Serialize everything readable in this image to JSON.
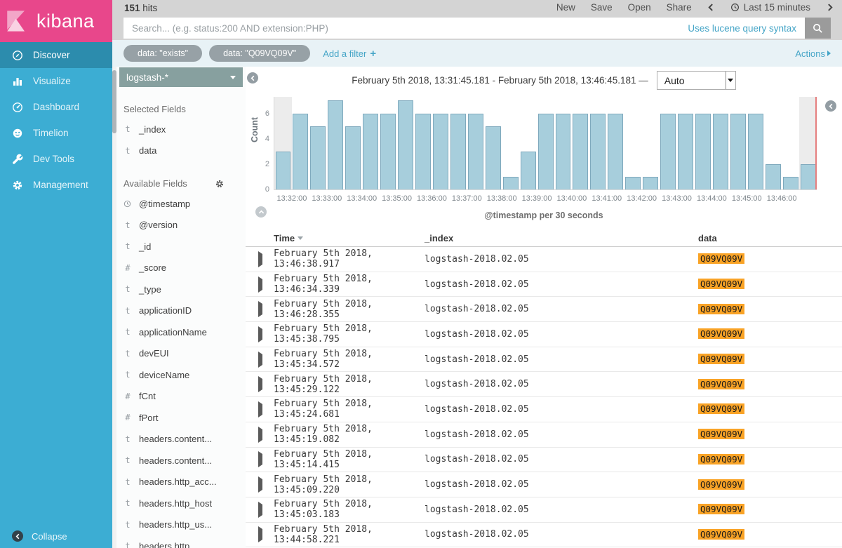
{
  "topbar": {
    "hits_count": "151",
    "hits_label": "hits",
    "menu": [
      "New",
      "Save",
      "Open",
      "Share"
    ],
    "time_range": "Last 15 minutes"
  },
  "search": {
    "placeholder": "Search... (e.g. status:200 AND extension:PHP)",
    "hint": "Uses lucene query syntax"
  },
  "filters": {
    "pills": [
      "data: \"exists\"",
      "data: \"Q09VQ09V\""
    ],
    "add_label": "Add a filter",
    "plus": "+",
    "actions_label": "Actions"
  },
  "sidebar": {
    "logo_text": "kibana",
    "items": [
      {
        "icon": "compass-icon",
        "label": "Discover",
        "active": true
      },
      {
        "icon": "bar-chart-icon",
        "label": "Visualize",
        "active": false
      },
      {
        "icon": "gauge-icon",
        "label": "Dashboard",
        "active": false
      },
      {
        "icon": "face-icon",
        "label": "Timelion",
        "active": false
      },
      {
        "icon": "wrench-icon",
        "label": "Dev Tools",
        "active": false
      },
      {
        "icon": "gear-icon",
        "label": "Management",
        "active": false
      }
    ],
    "collapse_label": "Collapse"
  },
  "fields_panel": {
    "index_pattern": "logstash-*",
    "selected_heading": "Selected Fields",
    "selected": [
      {
        "type": "t",
        "name": "_index"
      },
      {
        "type": "t",
        "name": "data"
      }
    ],
    "available_heading": "Available Fields",
    "available": [
      {
        "type": "clock",
        "name": "@timestamp"
      },
      {
        "type": "t",
        "name": "@version"
      },
      {
        "type": "t",
        "name": "_id"
      },
      {
        "type": "#",
        "name": "_score"
      },
      {
        "type": "t",
        "name": "_type"
      },
      {
        "type": "t",
        "name": "applicationID"
      },
      {
        "type": "t",
        "name": "applicationName"
      },
      {
        "type": "t",
        "name": "devEUI"
      },
      {
        "type": "t",
        "name": "deviceName"
      },
      {
        "type": "#",
        "name": "fCnt"
      },
      {
        "type": "#",
        "name": "fPort"
      },
      {
        "type": "t",
        "name": "headers.content..."
      },
      {
        "type": "t",
        "name": "headers.content..."
      },
      {
        "type": "t",
        "name": "headers.http_acc..."
      },
      {
        "type": "t",
        "name": "headers.http_host"
      },
      {
        "type": "t",
        "name": "headers.http_us..."
      },
      {
        "type": "t",
        "name": "headers.http..."
      }
    ]
  },
  "chart_header": {
    "range_text": "February 5th 2018, 13:31:45.181 - February 5th 2018, 13:46:45.181 —",
    "interval": "Auto"
  },
  "chart_data": {
    "type": "bar",
    "title": "",
    "xlabel": "@timestamp per 30 seconds",
    "ylabel": "Count",
    "categories": [
      "13:31:30",
      "13:32:00",
      "13:32:30",
      "13:33:00",
      "13:33:30",
      "13:34:00",
      "13:34:30",
      "13:35:00",
      "13:35:30",
      "13:36:00",
      "13:36:30",
      "13:37:00",
      "13:37:30",
      "13:38:00",
      "13:38:30",
      "13:39:00",
      "13:39:30",
      "13:40:00",
      "13:40:30",
      "13:41:00",
      "13:41:30",
      "13:42:00",
      "13:42:30",
      "13:43:00",
      "13:43:30",
      "13:44:00",
      "13:44:30",
      "13:45:00",
      "13:45:30",
      "13:46:00",
      "13:46:30"
    ],
    "values": [
      3,
      6,
      5,
      7,
      5,
      6,
      6,
      7,
      6,
      6,
      6,
      6,
      5,
      1,
      3,
      6,
      6,
      6,
      6,
      6,
      1,
      1,
      6,
      6,
      6,
      6,
      6,
      6,
      2,
      1,
      2
    ],
    "total_hits": 151,
    "x_tick_labels": [
      "13:32:00",
      "13:33:00",
      "13:34:00",
      "13:35:00",
      "13:36:00",
      "13:37:00",
      "13:38:00",
      "13:39:00",
      "13:40:00",
      "13:41:00",
      "13:42:00",
      "13:43:00",
      "13:44:00",
      "13:45:00",
      "13:46:00"
    ],
    "y_ticks": [
      6,
      4,
      2,
      0
    ],
    "ylim": [
      0,
      7.3
    ],
    "grid": false,
    "bucket_interval": "30 seconds",
    "partial_bucket_indices": [
      0,
      30
    ],
    "bar_color": "#a7cedc",
    "bar_border_color": "#7fa9bd",
    "now_marker_color": "#e57e7e"
  },
  "table": {
    "columns": [
      "Time",
      "_index",
      "data"
    ],
    "rows": [
      {
        "time": "February 5th 2018, 13:46:38.917",
        "index": "logstash-2018.02.05",
        "data": "Q09VQ09V"
      },
      {
        "time": "February 5th 2018, 13:46:34.339",
        "index": "logstash-2018.02.05",
        "data": "Q09VQ09V"
      },
      {
        "time": "February 5th 2018, 13:46:28.355",
        "index": "logstash-2018.02.05",
        "data": "Q09VQ09V"
      },
      {
        "time": "February 5th 2018, 13:45:38.795",
        "index": "logstash-2018.02.05",
        "data": "Q09VQ09V"
      },
      {
        "time": "February 5th 2018, 13:45:34.572",
        "index": "logstash-2018.02.05",
        "data": "Q09VQ09V"
      },
      {
        "time": "February 5th 2018, 13:45:29.122",
        "index": "logstash-2018.02.05",
        "data": "Q09VQ09V"
      },
      {
        "time": "February 5th 2018, 13:45:24.681",
        "index": "logstash-2018.02.05",
        "data": "Q09VQ09V"
      },
      {
        "time": "February 5th 2018, 13:45:19.082",
        "index": "logstash-2018.02.05",
        "data": "Q09VQ09V"
      },
      {
        "time": "February 5th 2018, 13:45:14.415",
        "index": "logstash-2018.02.05",
        "data": "Q09VQ09V"
      },
      {
        "time": "February 5th 2018, 13:45:09.220",
        "index": "logstash-2018.02.05",
        "data": "Q09VQ09V"
      },
      {
        "time": "February 5th 2018, 13:45:03.183",
        "index": "logstash-2018.02.05",
        "data": "Q09VQ09V"
      },
      {
        "time": "February 5th 2018, 13:44:58.221",
        "index": "logstash-2018.02.05",
        "data": "Q09VQ09V"
      }
    ]
  },
  "colors": {
    "brand_pink": "#e8478b",
    "sidebar_blue": "#3cadd3",
    "sidebar_active": "#2c8cad",
    "link_blue": "#45a5c7",
    "highlight_orange": "#f9a326",
    "topbar_gray": "#d4d4d4",
    "filter_bg": "#e8f2f6"
  }
}
